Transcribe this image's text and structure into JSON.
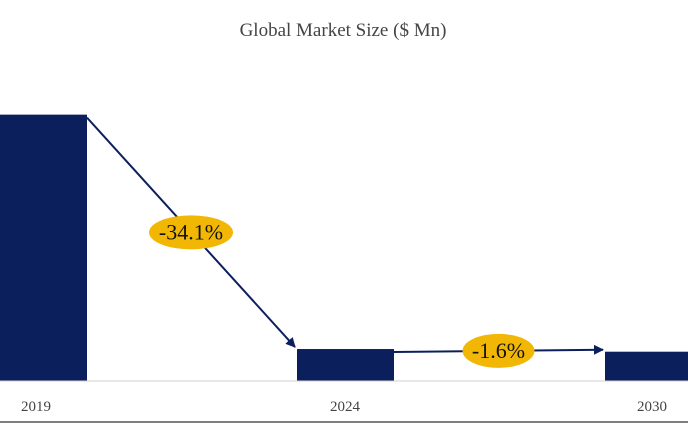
{
  "chart_data": {
    "type": "bar",
    "title": "Global Market Size ($ Mn)",
    "categories": [
      "2019",
      "2024",
      "2030"
    ],
    "values": [
      100,
      12,
      11
    ],
    "ylim": [
      0,
      110
    ],
    "grid": false,
    "bar_color": "#0b1f5c",
    "arrow_color": "#0b1f5c",
    "annotations": [
      {
        "from": "2019",
        "to": "2024",
        "label": "-34.1%",
        "color": "#f2b705"
      },
      {
        "from": "2024",
        "to": "2030",
        "label": "-1.6%",
        "color": "#f2b705"
      }
    ]
  }
}
